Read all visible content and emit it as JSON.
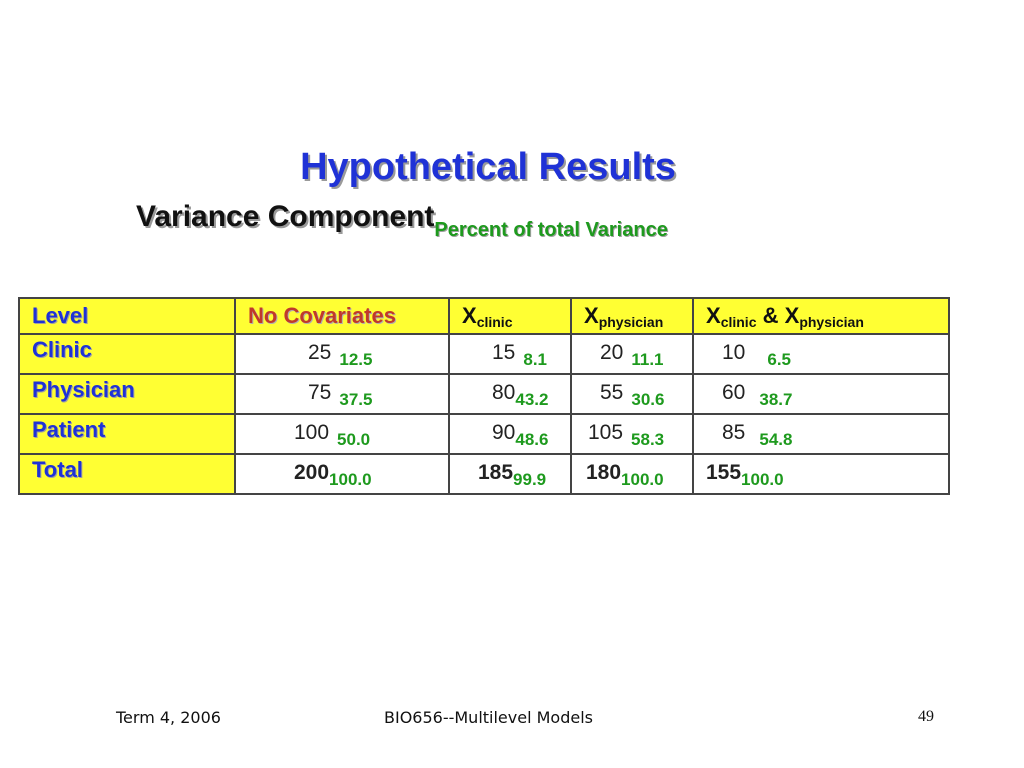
{
  "slide": {
    "title": "Hypothetical Results",
    "subtitle_main": "Variance Component",
    "subtitle_small": "Percent of total Variance"
  },
  "table": {
    "header": {
      "level": "Level",
      "no_covariates": "No Covariates",
      "x_letter": "X",
      "clinic_sub": "clinic",
      "physician_sub": "physician",
      "amp": "&"
    },
    "rows": [
      {
        "label": "Clinic",
        "values": [
          "25",
          "15",
          "20",
          "10"
        ],
        "pcts": [
          "12.5",
          "8.1",
          "11.1",
          "6.5"
        ]
      },
      {
        "label": "Physician",
        "values": [
          "75",
          "80",
          "55",
          "60"
        ],
        "pcts": [
          "37.5",
          "43.2",
          "30.6",
          "38.7"
        ]
      },
      {
        "label": "Patient",
        "values": [
          "100",
          "90",
          "105",
          "85"
        ],
        "pcts": [
          "50.0",
          "48.6",
          "58.3",
          "54.8"
        ]
      },
      {
        "label": "Total",
        "values": [
          "200",
          "185",
          "180",
          "155"
        ],
        "pcts": [
          "100.0",
          "99.9",
          "100.0",
          "100.0"
        ]
      }
    ]
  },
  "footer": {
    "term": "Term 4, 2006",
    "course": "BIO656--Multilevel Models",
    "page": "49"
  },
  "colors": {
    "title_blue": "#1f32d6",
    "header_yellow": "#ffff33",
    "pct_green": "#1e9a1e",
    "nocov_red": "#c0392b"
  }
}
